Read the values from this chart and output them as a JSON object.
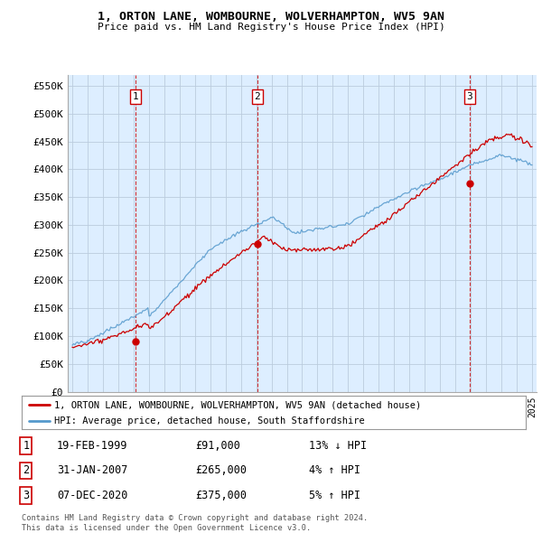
{
  "title": "1, ORTON LANE, WOMBOURNE, WOLVERHAMPTON, WV5 9AN",
  "subtitle": "Price paid vs. HM Land Registry's House Price Index (HPI)",
  "xlim": [
    1994.7,
    2025.3
  ],
  "ylim": [
    0,
    570000
  ],
  "yticks": [
    0,
    50000,
    100000,
    150000,
    200000,
    250000,
    300000,
    350000,
    400000,
    450000,
    500000,
    550000
  ],
  "ytick_labels": [
    "£0",
    "£50K",
    "£100K",
    "£150K",
    "£200K",
    "£250K",
    "£300K",
    "£350K",
    "£400K",
    "£450K",
    "£500K",
    "£550K"
  ],
  "sales": [
    {
      "date_num": 1999.13,
      "price": 91000,
      "label": "1"
    },
    {
      "date_num": 2007.08,
      "price": 265000,
      "label": "2"
    },
    {
      "date_num": 2020.93,
      "price": 375000,
      "label": "3"
    }
  ],
  "sale_vline_color": "#cc0000",
  "sale_marker_color": "#cc0000",
  "hpi_line_color": "#5599cc",
  "price_line_color": "#cc0000",
  "plot_bg_color": "#ddeeff",
  "legend_entries": [
    "1, ORTON LANE, WOMBOURNE, WOLVERHAMPTON, WV5 9AN (detached house)",
    "HPI: Average price, detached house, South Staffordshire"
  ],
  "table_rows": [
    {
      "num": "1",
      "date": "19-FEB-1999",
      "price": "£91,000",
      "hpi": "13% ↓ HPI"
    },
    {
      "num": "2",
      "date": "31-JAN-2007",
      "price": "£265,000",
      "hpi": "4% ↑ HPI"
    },
    {
      "num": "3",
      "date": "07-DEC-2020",
      "price": "£375,000",
      "hpi": "5% ↑ HPI"
    }
  ],
  "footer": "Contains HM Land Registry data © Crown copyright and database right 2024.\nThis data is licensed under the Open Government Licence v3.0.",
  "bg_color": "#ffffff",
  "grid_color": "#bbccdd"
}
